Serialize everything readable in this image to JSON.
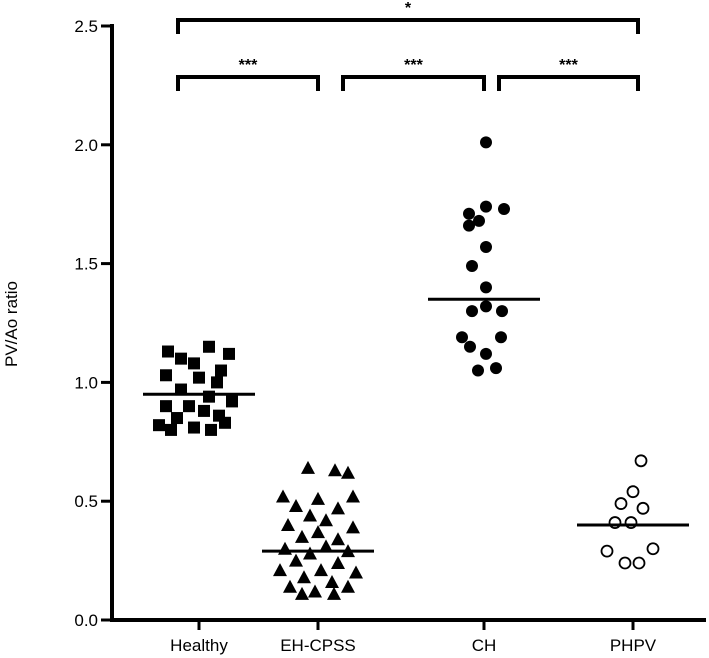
{
  "chart_data": {
    "type": "scatter",
    "ylabel": "PV/Ao ratio",
    "xlabel": "",
    "ylim": [
      0,
      2.5
    ],
    "yticks": [
      "0.0",
      "0.5",
      "1.0",
      "1.5",
      "2.0",
      "2.5"
    ],
    "grid": false,
    "categories": [
      "Healthy",
      "EH-CPSS",
      "CH",
      "PHPV"
    ],
    "series": [
      {
        "category": "Healthy",
        "marker": "square-filled",
        "median": 0.95,
        "points": [
          {
            "dx": -0.31,
            "y": 1.13
          },
          {
            "dx": 0.1,
            "y": 1.15
          },
          {
            "dx": 0.3,
            "y": 1.12
          },
          {
            "dx": -0.18,
            "y": 1.1
          },
          {
            "dx": -0.05,
            "y": 1.08
          },
          {
            "dx": 0.22,
            "y": 1.05
          },
          {
            "dx": -0.33,
            "y": 1.03
          },
          {
            "dx": 0.0,
            "y": 1.02
          },
          {
            "dx": 0.18,
            "y": 1.0
          },
          {
            "dx": -0.18,
            "y": 0.97
          },
          {
            "dx": 0.1,
            "y": 0.94
          },
          {
            "dx": 0.33,
            "y": 0.92
          },
          {
            "dx": -0.33,
            "y": 0.9
          },
          {
            "dx": -0.1,
            "y": 0.9
          },
          {
            "dx": 0.05,
            "y": 0.88
          },
          {
            "dx": -0.22,
            "y": 0.85
          },
          {
            "dx": 0.2,
            "y": 0.86
          },
          {
            "dx": -0.4,
            "y": 0.82
          },
          {
            "dx": -0.05,
            "y": 0.81
          },
          {
            "dx": 0.26,
            "y": 0.83
          },
          {
            "dx": -0.28,
            "y": 0.8
          },
          {
            "dx": 0.12,
            "y": 0.8
          }
        ]
      },
      {
        "category": "EH-CPSS",
        "marker": "triangle-filled",
        "median": 0.29,
        "points": [
          {
            "dx": -0.1,
            "y": 0.64
          },
          {
            "dx": 0.17,
            "y": 0.63
          },
          {
            "dx": 0.3,
            "y": 0.62
          },
          {
            "dx": -0.35,
            "y": 0.52
          },
          {
            "dx": 0.35,
            "y": 0.52
          },
          {
            "dx": 0.0,
            "y": 0.51
          },
          {
            "dx": -0.22,
            "y": 0.48
          },
          {
            "dx": 0.2,
            "y": 0.47
          },
          {
            "dx": -0.08,
            "y": 0.44
          },
          {
            "dx": 0.08,
            "y": 0.42
          },
          {
            "dx": -0.3,
            "y": 0.4
          },
          {
            "dx": 0.35,
            "y": 0.39
          },
          {
            "dx": 0.0,
            "y": 0.37
          },
          {
            "dx": -0.16,
            "y": 0.35
          },
          {
            "dx": 0.2,
            "y": 0.34
          },
          {
            "dx": -0.33,
            "y": 0.3
          },
          {
            "dx": 0.08,
            "y": 0.31
          },
          {
            "dx": 0.3,
            "y": 0.29
          },
          {
            "dx": -0.08,
            "y": 0.28
          },
          {
            "dx": -0.22,
            "y": 0.25
          },
          {
            "dx": 0.2,
            "y": 0.24
          },
          {
            "dx": -0.38,
            "y": 0.21
          },
          {
            "dx": 0.03,
            "y": 0.21
          },
          {
            "dx": 0.38,
            "y": 0.2
          },
          {
            "dx": -0.14,
            "y": 0.18
          },
          {
            "dx": 0.14,
            "y": 0.16
          },
          {
            "dx": -0.28,
            "y": 0.14
          },
          {
            "dx": 0.3,
            "y": 0.14
          },
          {
            "dx": -0.03,
            "y": 0.12
          },
          {
            "dx": -0.16,
            "y": 0.11
          },
          {
            "dx": 0.16,
            "y": 0.11
          }
        ]
      },
      {
        "category": "CH",
        "marker": "circle-filled",
        "median": 1.35,
        "points": [
          {
            "dx": 0.02,
            "y": 2.01
          },
          {
            "dx": 0.02,
            "y": 1.74
          },
          {
            "dx": -0.15,
            "y": 1.71
          },
          {
            "dx": 0.2,
            "y": 1.73
          },
          {
            "dx": -0.05,
            "y": 1.68
          },
          {
            "dx": -0.15,
            "y": 1.66
          },
          {
            "dx": 0.02,
            "y": 1.57
          },
          {
            "dx": -0.12,
            "y": 1.49
          },
          {
            "dx": 0.02,
            "y": 1.4
          },
          {
            "dx": 0.02,
            "y": 1.32
          },
          {
            "dx": -0.12,
            "y": 1.3
          },
          {
            "dx": 0.18,
            "y": 1.3
          },
          {
            "dx": -0.22,
            "y": 1.19
          },
          {
            "dx": 0.17,
            "y": 1.19
          },
          {
            "dx": -0.14,
            "y": 1.15
          },
          {
            "dx": 0.02,
            "y": 1.12
          },
          {
            "dx": -0.06,
            "y": 1.05
          },
          {
            "dx": 0.12,
            "y": 1.06
          }
        ]
      },
      {
        "category": "PHPV",
        "marker": "circle-open",
        "median": 0.4,
        "points": [
          {
            "dx": 0.08,
            "y": 0.67
          },
          {
            "dx": 0.0,
            "y": 0.54
          },
          {
            "dx": -0.12,
            "y": 0.49
          },
          {
            "dx": 0.1,
            "y": 0.47
          },
          {
            "dx": -0.18,
            "y": 0.41
          },
          {
            "dx": -0.02,
            "y": 0.41
          },
          {
            "dx": 0.2,
            "y": 0.3
          },
          {
            "dx": -0.26,
            "y": 0.29
          },
          {
            "dx": -0.08,
            "y": 0.24
          },
          {
            "dx": 0.06,
            "y": 0.24
          }
        ]
      }
    ],
    "brackets": [
      {
        "from": 0,
        "to": 3,
        "label": "*",
        "level": 1
      },
      {
        "from": 0,
        "to": 1,
        "label": "***",
        "level": 0
      },
      {
        "from": 1,
        "to": 2,
        "label": "***",
        "level": 0
      },
      {
        "from": 2,
        "to": 3,
        "label": "***",
        "level": 0
      }
    ]
  }
}
